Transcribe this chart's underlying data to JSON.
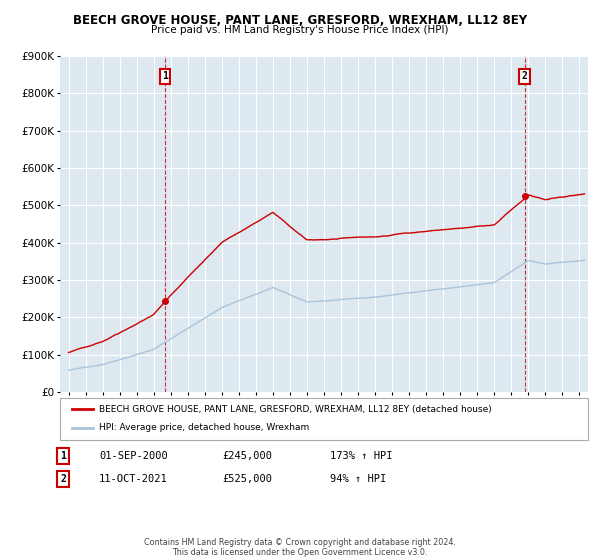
{
  "title_line1": "BEECH GROVE HOUSE, PANT LANE, GRESFORD, WREXHAM, LL12 8EY",
  "title_line2": "Price paid vs. HM Land Registry's House Price Index (HPI)",
  "background_color": "#ffffff",
  "plot_bg_color": "#dde8f0",
  "grid_color": "#ffffff",
  "ylim": [
    0,
    900000
  ],
  "yticks": [
    0,
    100000,
    200000,
    300000,
    400000,
    500000,
    600000,
    700000,
    800000,
    900000
  ],
  "ytick_labels": [
    "£0",
    "£100K",
    "£200K",
    "£300K",
    "£400K",
    "£500K",
    "£600K",
    "£700K",
    "£800K",
    "£900K"
  ],
  "hpi_color": "#aac4dd",
  "house_color": "#cc0000",
  "vline_color": "#cc0000",
  "marker1_year": 2000.67,
  "marker2_year": 2021.78,
  "marker1_price": 245000,
  "marker2_price": 525000,
  "legend_house": "BEECH GROVE HOUSE, PANT LANE, GRESFORD, WREXHAM, LL12 8EY (detached house)",
  "legend_hpi": "HPI: Average price, detached house, Wrexham",
  "annot1_label": "1",
  "annot1_date": "01-SEP-2000",
  "annot1_price": "£245,000",
  "annot1_hpi": "173% ↑ HPI",
  "annot2_label": "2",
  "annot2_date": "11-OCT-2021",
  "annot2_price": "£525,000",
  "annot2_hpi": "94% ↑ HPI",
  "footer": "Contains HM Land Registry data © Crown copyright and database right 2024.\nThis data is licensed under the Open Government Licence v3.0.",
  "xlim_left": 1994.5,
  "xlim_right": 2025.5
}
